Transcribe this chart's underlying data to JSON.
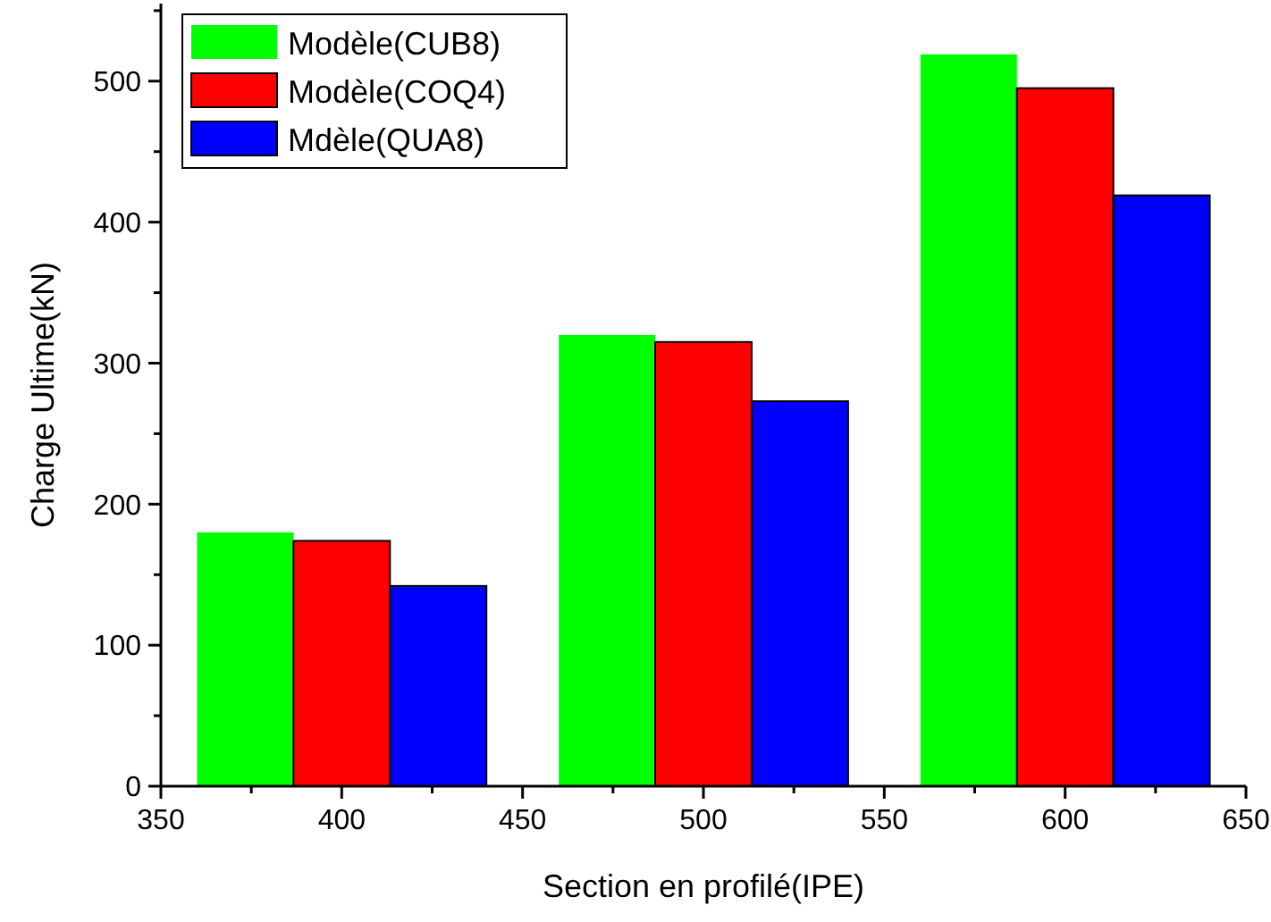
{
  "chart_data": {
    "type": "bar",
    "xlabel": "Section en profilé(IPE)",
    "ylabel": "Charge Ultime(kN)",
    "x": [
      400,
      500,
      600
    ],
    "series": [
      {
        "name": "Modèle(CUB8)",
        "color": "#00ff00",
        "values": [
          180,
          320,
          519
        ]
      },
      {
        "name": "Modèle(COQ4)",
        "color": "#ff0000",
        "values": [
          174,
          315,
          495
        ]
      },
      {
        "name": "Mdèle(QUA8)",
        "color": "#0000ff",
        "values": [
          142,
          273,
          419
        ]
      }
    ],
    "xlim": [
      350,
      650
    ],
    "xticks": [
      350,
      {
        "value": 375,
        "label": null
      },
      400,
      {
        "value": 425,
        "label": null
      },
      450,
      {
        "value": 475,
        "label": null
      },
      500,
      {
        "value": 525,
        "label": null
      },
      550,
      {
        "value": 575,
        "label": null
      },
      600,
      {
        "value": 625,
        "label": null
      },
      650
    ],
    "ylim": [
      0,
      555
    ],
    "yticks": [
      0,
      {
        "value": 50,
        "label": null
      },
      100,
      {
        "value": 150,
        "label": null
      },
      200,
      {
        "value": 250,
        "label": null
      },
      300,
      {
        "value": 350,
        "label": null
      },
      400,
      {
        "value": 450,
        "label": null
      },
      500,
      {
        "value": 550,
        "label": null
      }
    ],
    "grid": false,
    "legend": "top left"
  }
}
